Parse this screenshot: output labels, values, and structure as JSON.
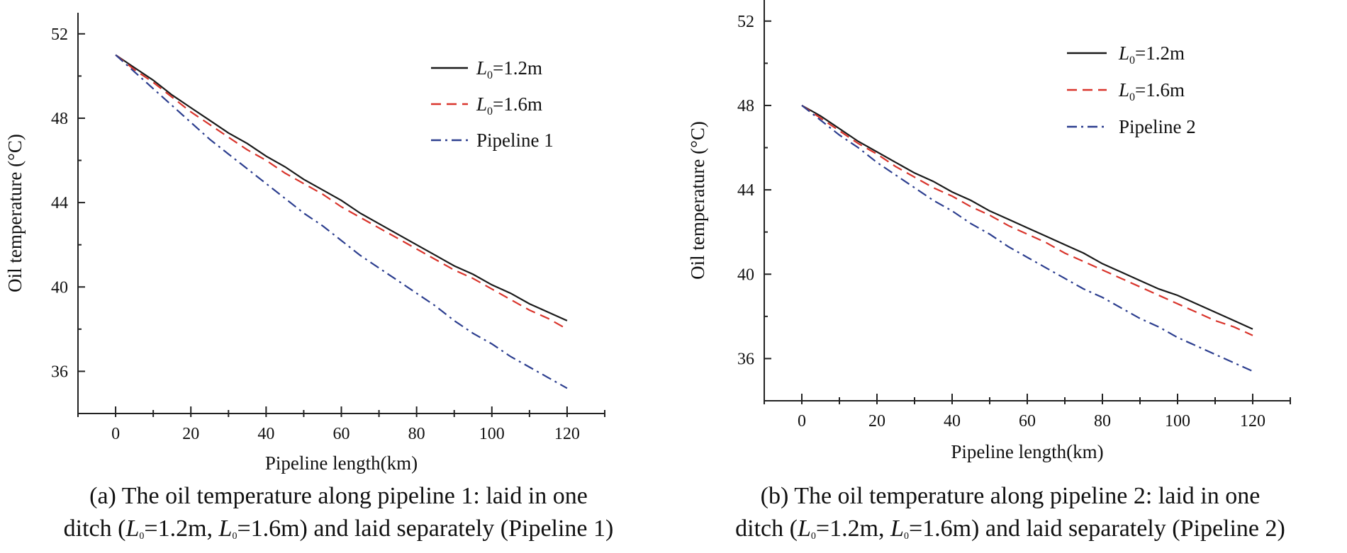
{
  "chart_data": [
    {
      "type": "line",
      "xlabel": "Pipeline length(km)",
      "ylabel": "Oil temperature (°C)",
      "xlim": [
        -10,
        130
      ],
      "ylim": [
        34,
        53
      ],
      "xticks": [
        "0",
        "20",
        "40",
        "60",
        "80",
        "100",
        "120"
      ],
      "yticks": [
        "36",
        "40",
        "44",
        "48",
        "52"
      ],
      "x": [
        0,
        5,
        10,
        15,
        20,
        25,
        30,
        35,
        40,
        45,
        50,
        55,
        60,
        65,
        70,
        75,
        80,
        85,
        90,
        95,
        100,
        105,
        110,
        115,
        120
      ],
      "legend_position": "top-right",
      "series": [
        {
          "name_main": "L",
          "name_sub": "0",
          "name_rest": "=1.2m",
          "color": "#1a1a1a",
          "dash": "solid",
          "values": [
            51.0,
            50.4,
            49.8,
            49.1,
            48.5,
            47.9,
            47.3,
            46.8,
            46.2,
            45.7,
            45.1,
            44.6,
            44.1,
            43.5,
            43.0,
            42.5,
            42.0,
            41.5,
            41.0,
            40.6,
            40.1,
            39.7,
            39.2,
            38.8,
            38.4
          ]
        },
        {
          "name_main": "L",
          "name_sub": "0",
          "name_rest": "=1.6m",
          "color": "#d9342b",
          "dash": "dashed",
          "values": [
            51.0,
            50.3,
            49.7,
            49.0,
            48.3,
            47.7,
            47.1,
            46.5,
            46.0,
            45.4,
            44.9,
            44.4,
            43.8,
            43.3,
            42.8,
            42.3,
            41.8,
            41.3,
            40.8,
            40.4,
            39.9,
            39.4,
            38.9,
            38.5,
            38.0
          ]
        },
        {
          "name": "Pipeline 1",
          "color": "#2c3e8f",
          "dash": "dashdot",
          "values": [
            51.0,
            50.2,
            49.4,
            48.6,
            47.8,
            47.0,
            46.3,
            45.6,
            44.9,
            44.2,
            43.5,
            42.9,
            42.2,
            41.5,
            40.9,
            40.3,
            39.7,
            39.1,
            38.4,
            37.8,
            37.3,
            36.7,
            36.2,
            35.7,
            35.2
          ]
        }
      ]
    },
    {
      "type": "line",
      "xlabel": "Pipeline length(km)",
      "ylabel": "Oil temperature (°C)",
      "xlim": [
        -10,
        130
      ],
      "ylim": [
        34,
        53
      ],
      "xticks": [
        "0",
        "20",
        "40",
        "60",
        "80",
        "100",
        "120"
      ],
      "yticks": [
        "36",
        "40",
        "44",
        "48",
        "52"
      ],
      "x": [
        0,
        5,
        10,
        15,
        20,
        25,
        30,
        35,
        40,
        45,
        50,
        55,
        60,
        65,
        70,
        75,
        80,
        85,
        90,
        95,
        100,
        105,
        110,
        115,
        120
      ],
      "legend_position": "top-right",
      "series": [
        {
          "name_main": "L",
          "name_sub": "0",
          "name_rest": "=1.2m",
          "color": "#1a1a1a",
          "dash": "solid",
          "values": [
            48.0,
            47.5,
            46.9,
            46.3,
            45.8,
            45.3,
            44.8,
            44.4,
            43.9,
            43.5,
            43.0,
            42.6,
            42.2,
            41.8,
            41.4,
            41.0,
            40.5,
            40.1,
            39.7,
            39.3,
            39.0,
            38.6,
            38.2,
            37.8,
            37.4
          ]
        },
        {
          "name_main": "L",
          "name_sub": "0",
          "name_rest": "=1.6m",
          "color": "#d9342b",
          "dash": "dashed",
          "values": [
            48.0,
            47.4,
            46.8,
            46.2,
            45.7,
            45.1,
            44.6,
            44.1,
            43.7,
            43.2,
            42.8,
            42.3,
            41.9,
            41.5,
            41.0,
            40.6,
            40.2,
            39.8,
            39.4,
            39.0,
            38.6,
            38.2,
            37.8,
            37.5,
            37.1
          ]
        },
        {
          "name": "Pipeline 2",
          "color": "#2c3e8f",
          "dash": "dashdot",
          "values": [
            48.0,
            47.3,
            46.6,
            46.0,
            45.3,
            44.7,
            44.1,
            43.5,
            43.0,
            42.4,
            41.9,
            41.3,
            40.8,
            40.3,
            39.8,
            39.3,
            38.9,
            38.4,
            37.9,
            37.5,
            37.0,
            36.6,
            36.2,
            35.8,
            35.4
          ]
        }
      ]
    }
  ],
  "captions": [
    {
      "line1": "(a) The oil temperature along pipeline 1: laid in one",
      "line2_pre": "ditch (",
      "l_main": "L",
      "l_sub": "0",
      "v1": "=1.2m, ",
      "v2": "=1.6m) and laid separately (Pipeline 1)"
    },
    {
      "line1": "(b) The oil temperature along pipeline 2: laid in one",
      "line2_pre": "ditch (",
      "l_main": "L",
      "l_sub": "0",
      "v1": "=1.2m, ",
      "v2": "=1.6m) and laid separately (Pipeline 2)"
    }
  ]
}
